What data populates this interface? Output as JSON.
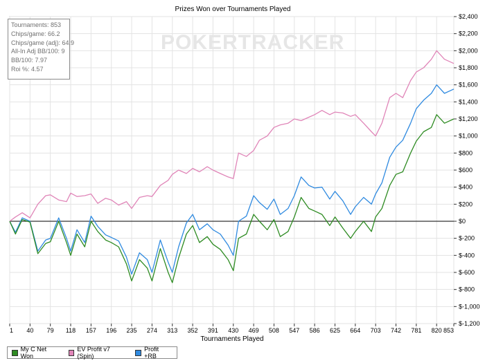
{
  "chart_data": {
    "type": "line",
    "title": "Prizes Won over Tournaments Played",
    "xlabel": "Tournaments Played",
    "ylabel": "",
    "xlim": [
      1,
      853
    ],
    "ylim": [
      -1200,
      2400
    ],
    "x_ticks": [
      "1",
      "40",
      "79",
      "118",
      "157",
      "196",
      "235",
      "274",
      "313",
      "352",
      "391",
      "430",
      "469",
      "508",
      "547",
      "586",
      "625",
      "664",
      "703",
      "742",
      "781",
      "820",
      "853"
    ],
    "y_ticks": [
      "$-1,200",
      "$-1,000",
      "$-800",
      "$-600",
      "$-400",
      "$-200",
      "$0",
      "$200",
      "$400",
      "$600",
      "$800",
      "$1,000",
      "$1,200",
      "$1,400",
      "$1,600",
      "$1,800",
      "$2,000",
      "$2,200",
      "$2,400"
    ],
    "y_tick_values": [
      -1200,
      -1000,
      -800,
      -600,
      -400,
      -200,
      0,
      200,
      400,
      600,
      800,
      1000,
      1200,
      1400,
      1600,
      1800,
      2000,
      2200,
      2400
    ],
    "grid": true,
    "legend_position": "bottom-left",
    "series": [
      {
        "name": "My C Net Won",
        "color": "#2e8b22",
        "x": [
          1,
          12,
          25,
          40,
          55,
          70,
          79,
          95,
          110,
          118,
          130,
          145,
          157,
          170,
          185,
          196,
          210,
          225,
          235,
          250,
          265,
          274,
          290,
          305,
          313,
          325,
          340,
          352,
          365,
          380,
          391,
          405,
          420,
          430,
          440,
          455,
          469,
          480,
          495,
          508,
          520,
          535,
          547,
          560,
          575,
          586,
          600,
          615,
          625,
          640,
          655,
          664,
          680,
          695,
          703,
          715,
          730,
          742,
          755,
          770,
          781,
          795,
          810,
          820,
          835,
          853
        ],
        "y": [
          0,
          -150,
          20,
          -10,
          -380,
          -260,
          -240,
          0,
          -250,
          -400,
          -150,
          -300,
          0,
          -120,
          -220,
          -250,
          -300,
          -500,
          -700,
          -450,
          -550,
          -700,
          -320,
          -600,
          -720,
          -430,
          -150,
          -50,
          -250,
          -180,
          -270,
          -330,
          -450,
          -580,
          -200,
          -150,
          80,
          0,
          -100,
          20,
          -180,
          -120,
          50,
          280,
          150,
          120,
          80,
          -50,
          50,
          -80,
          -200,
          -120,
          0,
          -120,
          50,
          150,
          420,
          550,
          580,
          800,
          940,
          1050,
          1100,
          1250,
          1150,
          1200
        ]
      },
      {
        "name": "EV Profit v7 (Spin)",
        "color": "#e085b8",
        "x": [
          1,
          12,
          25,
          40,
          55,
          70,
          79,
          95,
          110,
          118,
          130,
          145,
          157,
          170,
          185,
          196,
          210,
          225,
          235,
          250,
          265,
          274,
          290,
          305,
          313,
          325,
          340,
          352,
          365,
          380,
          391,
          405,
          420,
          430,
          440,
          455,
          469,
          480,
          495,
          508,
          520,
          535,
          547,
          560,
          575,
          586,
          600,
          615,
          625,
          640,
          655,
          664,
          680,
          695,
          703,
          715,
          730,
          742,
          755,
          770,
          781,
          795,
          810,
          820,
          835,
          853
        ],
        "y": [
          0,
          50,
          100,
          40,
          200,
          300,
          310,
          250,
          230,
          330,
          290,
          300,
          320,
          210,
          270,
          250,
          190,
          230,
          150,
          280,
          300,
          290,
          420,
          480,
          550,
          600,
          560,
          620,
          580,
          640,
          600,
          560,
          520,
          500,
          800,
          760,
          830,
          950,
          1000,
          1100,
          1130,
          1150,
          1200,
          1180,
          1220,
          1250,
          1300,
          1250,
          1280,
          1270,
          1230,
          1250,
          1150,
          1050,
          1000,
          1150,
          1450,
          1500,
          1450,
          1650,
          1750,
          1800,
          1900,
          2000,
          1900,
          1850
        ]
      },
      {
        "name": "Profit +RB",
        "color": "#2f8ae0",
        "x": [
          1,
          12,
          25,
          40,
          55,
          70,
          79,
          95,
          110,
          118,
          130,
          145,
          157,
          170,
          185,
          196,
          210,
          225,
          235,
          250,
          265,
          274,
          290,
          305,
          313,
          325,
          340,
          352,
          365,
          380,
          391,
          405,
          420,
          430,
          440,
          455,
          469,
          480,
          495,
          508,
          520,
          535,
          547,
          560,
          575,
          586,
          600,
          615,
          625,
          640,
          655,
          664,
          680,
          695,
          703,
          715,
          730,
          742,
          755,
          770,
          781,
          795,
          810,
          820,
          835,
          853
        ],
        "y": [
          0,
          -130,
          40,
          0,
          -350,
          -220,
          -200,
          40,
          -200,
          -350,
          -100,
          -250,
          60,
          -60,
          -160,
          -190,
          -230,
          -420,
          -620,
          -370,
          -450,
          -600,
          -220,
          -480,
          -600,
          -300,
          -20,
          80,
          -100,
          -30,
          -100,
          -150,
          -280,
          -400,
          0,
          60,
          300,
          220,
          140,
          260,
          80,
          150,
          300,
          520,
          420,
          390,
          400,
          260,
          350,
          240,
          80,
          170,
          280,
          200,
          320,
          450,
          750,
          870,
          950,
          1150,
          1320,
          1420,
          1500,
          1600,
          1500,
          1550
        ]
      }
    ],
    "zero_line": 0
  },
  "stats_box": {
    "lines": [
      "Tournaments: 853",
      "Chips/game: 66.2",
      "Chips/game (adj): 64.9",
      "All-In Adj BB/100: 9",
      "BB/100: 7.97",
      "Roi %: 4.57"
    ]
  },
  "watermark": "POKERTRACKER"
}
